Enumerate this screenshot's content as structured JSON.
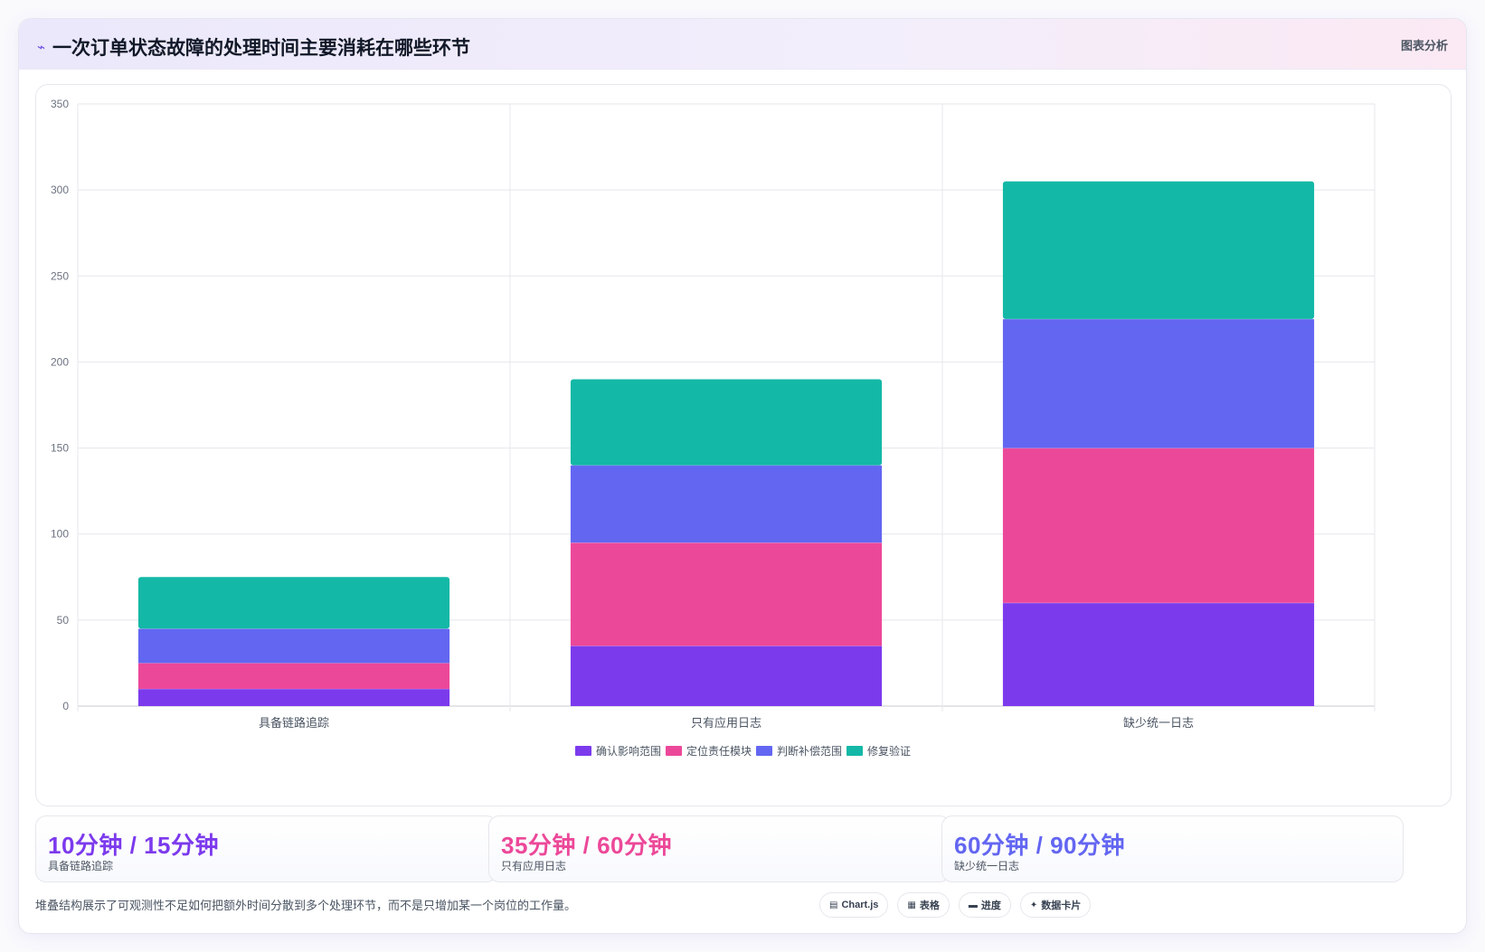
{
  "header": {
    "title": "一次订单状态故障的处理时间主要消耗在哪些环节",
    "tag": "图表分析",
    "icon": "bolt-icon"
  },
  "chart_data": {
    "type": "bar",
    "stacked": true,
    "categories": [
      "具备链路追踪",
      "只有应用日志",
      "缺少统一日志"
    ],
    "series": [
      {
        "name": "确认影响范围",
        "color": "#7c3aed",
        "values": [
          10,
          35,
          60
        ]
      },
      {
        "name": "定位责任模块",
        "color": "#ec4899",
        "values": [
          15,
          60,
          90
        ]
      },
      {
        "name": "判断补偿范围",
        "color": "#6366f1",
        "values": [
          20,
          45,
          75
        ]
      },
      {
        "name": "修复验证",
        "color": "#14b8a6",
        "values": [
          30,
          50,
          80
        ]
      }
    ],
    "ylim": [
      0,
      350
    ],
    "yticks": [
      "0",
      "50",
      "100",
      "150",
      "200",
      "250",
      "300",
      "350"
    ],
    "grid": true,
    "legend_position": "bottom"
  },
  "stats": [
    {
      "value": "10分钟 / 15分钟",
      "label": "具备链路追踪",
      "color": "#7c3aed"
    },
    {
      "value": "35分钟 / 60分钟",
      "label": "只有应用日志",
      "color": "#ec4899"
    },
    {
      "value": "60分钟 / 90分钟",
      "label": "缺少统一日志",
      "color": "#6366f1"
    }
  ],
  "footer": {
    "note": "堆叠结构展示了可观测性不足如何把额外时间分散到多个处理环节，而不是只增加某一个岗位的工作量。",
    "chips": [
      {
        "icon": "chart-icon",
        "glyph": "▤",
        "label": "Chart.js"
      },
      {
        "icon": "table-icon",
        "glyph": "▦",
        "label": "表格"
      },
      {
        "icon": "progress-icon",
        "glyph": "▬",
        "label": "进度"
      },
      {
        "icon": "sparkle-icon",
        "glyph": "✦",
        "label": "数据卡片"
      }
    ]
  }
}
